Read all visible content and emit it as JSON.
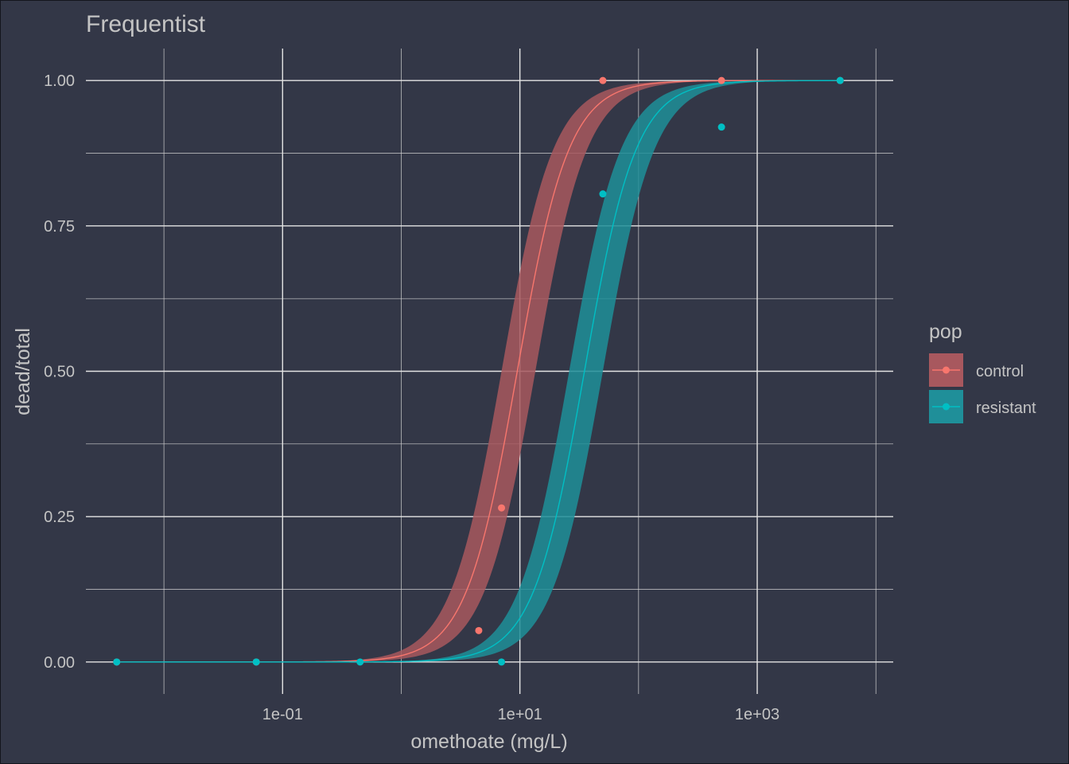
{
  "chart_data": {
    "type": "line",
    "title": "Frequentist",
    "xlabel": "omethoate (mg/L)",
    "ylabel": "dead/total",
    "x_scale": "log10",
    "xlim": [
      0.0022,
      14000
    ],
    "ylim": [
      -0.055,
      1.055
    ],
    "x_ticks": [
      {
        "value": 0.1,
        "label": "1e-01"
      },
      {
        "value": 10,
        "label": "1e+01"
      },
      {
        "value": 1000,
        "label": "1e+03"
      }
    ],
    "x_minor_ticks": [
      0.01,
      1,
      100,
      10000
    ],
    "y_ticks": [
      {
        "value": 0,
        "label": "0.00"
      },
      {
        "value": 0.25,
        "label": "0.25"
      },
      {
        "value": 0.5,
        "label": "0.50"
      },
      {
        "value": 0.75,
        "label": "0.75"
      },
      {
        "value": 1,
        "label": "1.00"
      }
    ],
    "y_minor_ticks": [
      0.125,
      0.375,
      0.625,
      0.875
    ],
    "grid": true,
    "legend": {
      "title": "pop",
      "position": "right"
    },
    "series": [
      {
        "name": "control",
        "color": "#F8766D",
        "ribbon_color": "#a8585e",
        "model": {
          "ec50": 9.5,
          "slope": 2.0,
          "ec50_low": 7.0,
          "ec50_high": 13.5
        },
        "points": [
          {
            "x": 0.004,
            "y": 0
          },
          {
            "x": 0.06,
            "y": 0
          },
          {
            "x": 4.5,
            "y": 0.054
          },
          {
            "x": 7.0,
            "y": 0.265
          },
          {
            "x": 50,
            "y": 1.0
          },
          {
            "x": 500,
            "y": 1.0
          },
          {
            "x": 5000,
            "y": 1.0
          }
        ]
      },
      {
        "name": "resistant",
        "color": "#00BFC4",
        "ribbon_color": "#1f8f99",
        "model": {
          "ec50": 35,
          "slope": 2.0,
          "ec50_low": 26,
          "ec50_high": 50
        },
        "points": [
          {
            "x": 0.004,
            "y": 0
          },
          {
            "x": 0.06,
            "y": 0
          },
          {
            "x": 0.45,
            "y": 0
          },
          {
            "x": 7.0,
            "y": 0
          },
          {
            "x": 50,
            "y": 0.805
          },
          {
            "x": 500,
            "y": 0.92
          },
          {
            "x": 5000,
            "y": 1.0
          }
        ]
      }
    ]
  }
}
